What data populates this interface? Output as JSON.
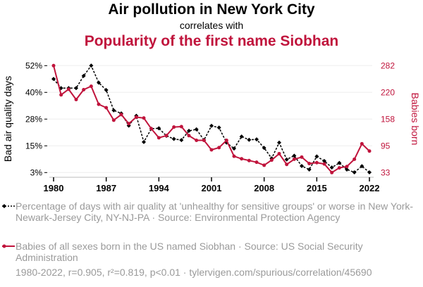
{
  "title": "Air pollution in New York City",
  "subtitle": "correlates with",
  "title2": "Popularity of the first name Siobhan",
  "colors": {
    "series1": "#000000",
    "series2": "#c0143c",
    "text_muted": "#9a9a9a"
  },
  "legend": [
    "Percentage of days with air quality at 'unhealthy for sensitive groups' or worse in New York-Newark-Jersey City, NY-NJ-PA · Source: Environmental Protection Agency",
    "Babies of all sexes born in the US named Siobhan · Source: US Social Security Administration"
  ],
  "footer": "1980-2022, r=0.905, r²=0.819, p<0.01 · tylervigen.com/spurious/correlation/45690",
  "chart_data": {
    "type": "line",
    "x": [
      1980,
      1981,
      1982,
      1983,
      1984,
      1985,
      1986,
      1987,
      1988,
      1989,
      1990,
      1991,
      1992,
      1993,
      1994,
      1995,
      1996,
      1997,
      1998,
      1999,
      2000,
      2001,
      2002,
      2003,
      2004,
      2005,
      2006,
      2007,
      2008,
      2009,
      2010,
      2011,
      2012,
      2013,
      2014,
      2015,
      2016,
      2017,
      2018,
      2019,
      2020,
      2021,
      2022
    ],
    "xticks": [
      "1980",
      "1987",
      "1994",
      "2001",
      "2008",
      "2015",
      "2022"
    ],
    "xlim": [
      1980,
      2022
    ],
    "ylabel_left": "Bad air quality days",
    "ylabel_right": "Babies born",
    "yticks_left": [
      "3%",
      "15%",
      "28%",
      "40%",
      "52%"
    ],
    "yticks_right": [
      "33",
      "95",
      "158",
      "220",
      "282"
    ],
    "ylim_left": [
      3,
      52
    ],
    "ylim_right": [
      33,
      282
    ],
    "grid": "horizontal",
    "series": [
      {
        "name": "Bad air quality days (%)",
        "axis": "left",
        "style": "dashed-diamond",
        "values": [
          45.9,
          41.7,
          41.7,
          41.7,
          47.3,
          52.0,
          44.2,
          40.8,
          31.5,
          30.1,
          24.5,
          29.0,
          17.0,
          23.1,
          23.3,
          19.8,
          18.4,
          17.9,
          22.1,
          22.8,
          17.9,
          24.4,
          23.6,
          16.7,
          14.0,
          19.5,
          18.0,
          18.2,
          14.3,
          9.5,
          16.7,
          9.0,
          10.7,
          6.0,
          4.4,
          10.4,
          8.3,
          5.3,
          7.4,
          4.4,
          3.1,
          5.9,
          3.1
        ]
      },
      {
        "name": "Babies born named Siobhan",
        "axis": "right",
        "style": "solid-dot",
        "values": [
          282,
          214,
          227,
          203,
          226,
          234,
          192,
          184,
          155,
          168,
          147,
          162,
          160,
          135,
          114,
          119,
          139,
          140,
          119,
          108,
          108,
          86,
          91,
          108,
          71,
          65,
          61,
          57,
          50,
          62,
          77,
          52,
          64,
          69,
          54,
          56,
          53,
          33,
          44,
          47,
          64,
          100,
          83
        ]
      }
    ]
  }
}
